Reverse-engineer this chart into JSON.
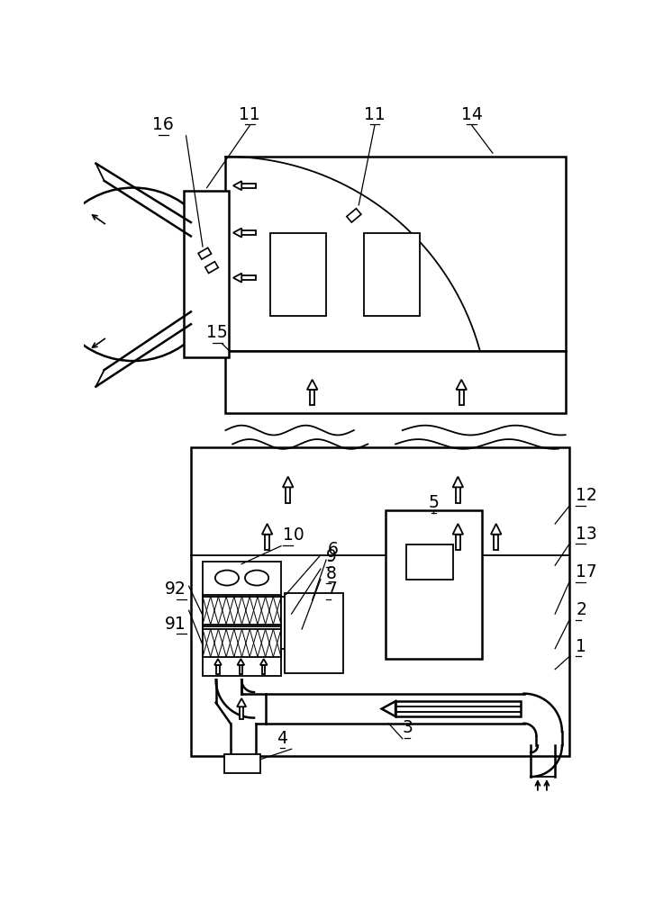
{
  "bg_color": "#ffffff",
  "line_color": "#000000",
  "fig_width": 7.26,
  "fig_height": 10.0
}
